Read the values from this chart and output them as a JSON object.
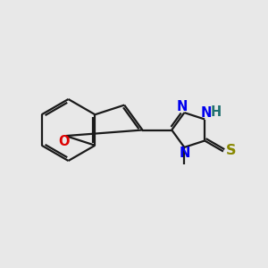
{
  "background_color": "#e8e8e8",
  "bond_color": "#1a1a1a",
  "bond_width": 1.6,
  "atom_colors": {
    "N": "#0000ee",
    "O": "#dd0000",
    "S": "#888800",
    "H": "#207070",
    "C": "#1a1a1a"
  },
  "font_size": 10.5,
  "fig_size": [
    3.0,
    3.0
  ],
  "dpi": 100,
  "xlim": [
    0,
    10
  ],
  "ylim": [
    0,
    10
  ]
}
